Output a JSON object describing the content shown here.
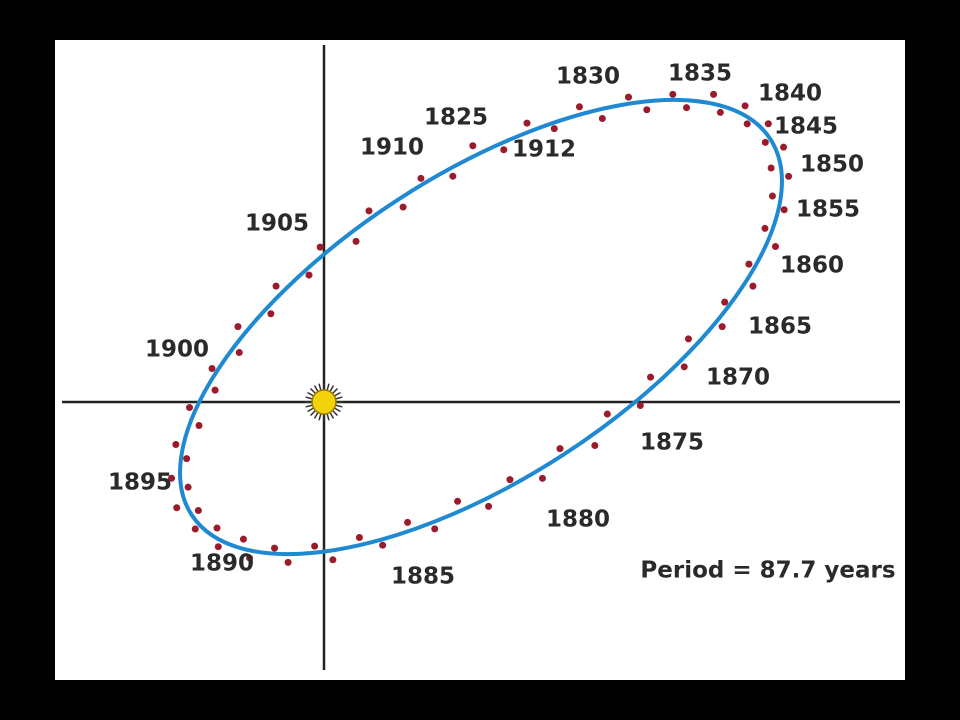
{
  "labels": [
    "1830",
    "1835",
    "1840",
    "1845",
    "1850",
    "1855",
    "1860",
    "1865",
    "1870",
    "1875",
    "1880",
    "1885",
    "1890",
    "1895",
    "1900",
    "1905",
    "1910",
    "1825",
    "1912"
  ],
  "note": "Period = 87.7 years"
}
